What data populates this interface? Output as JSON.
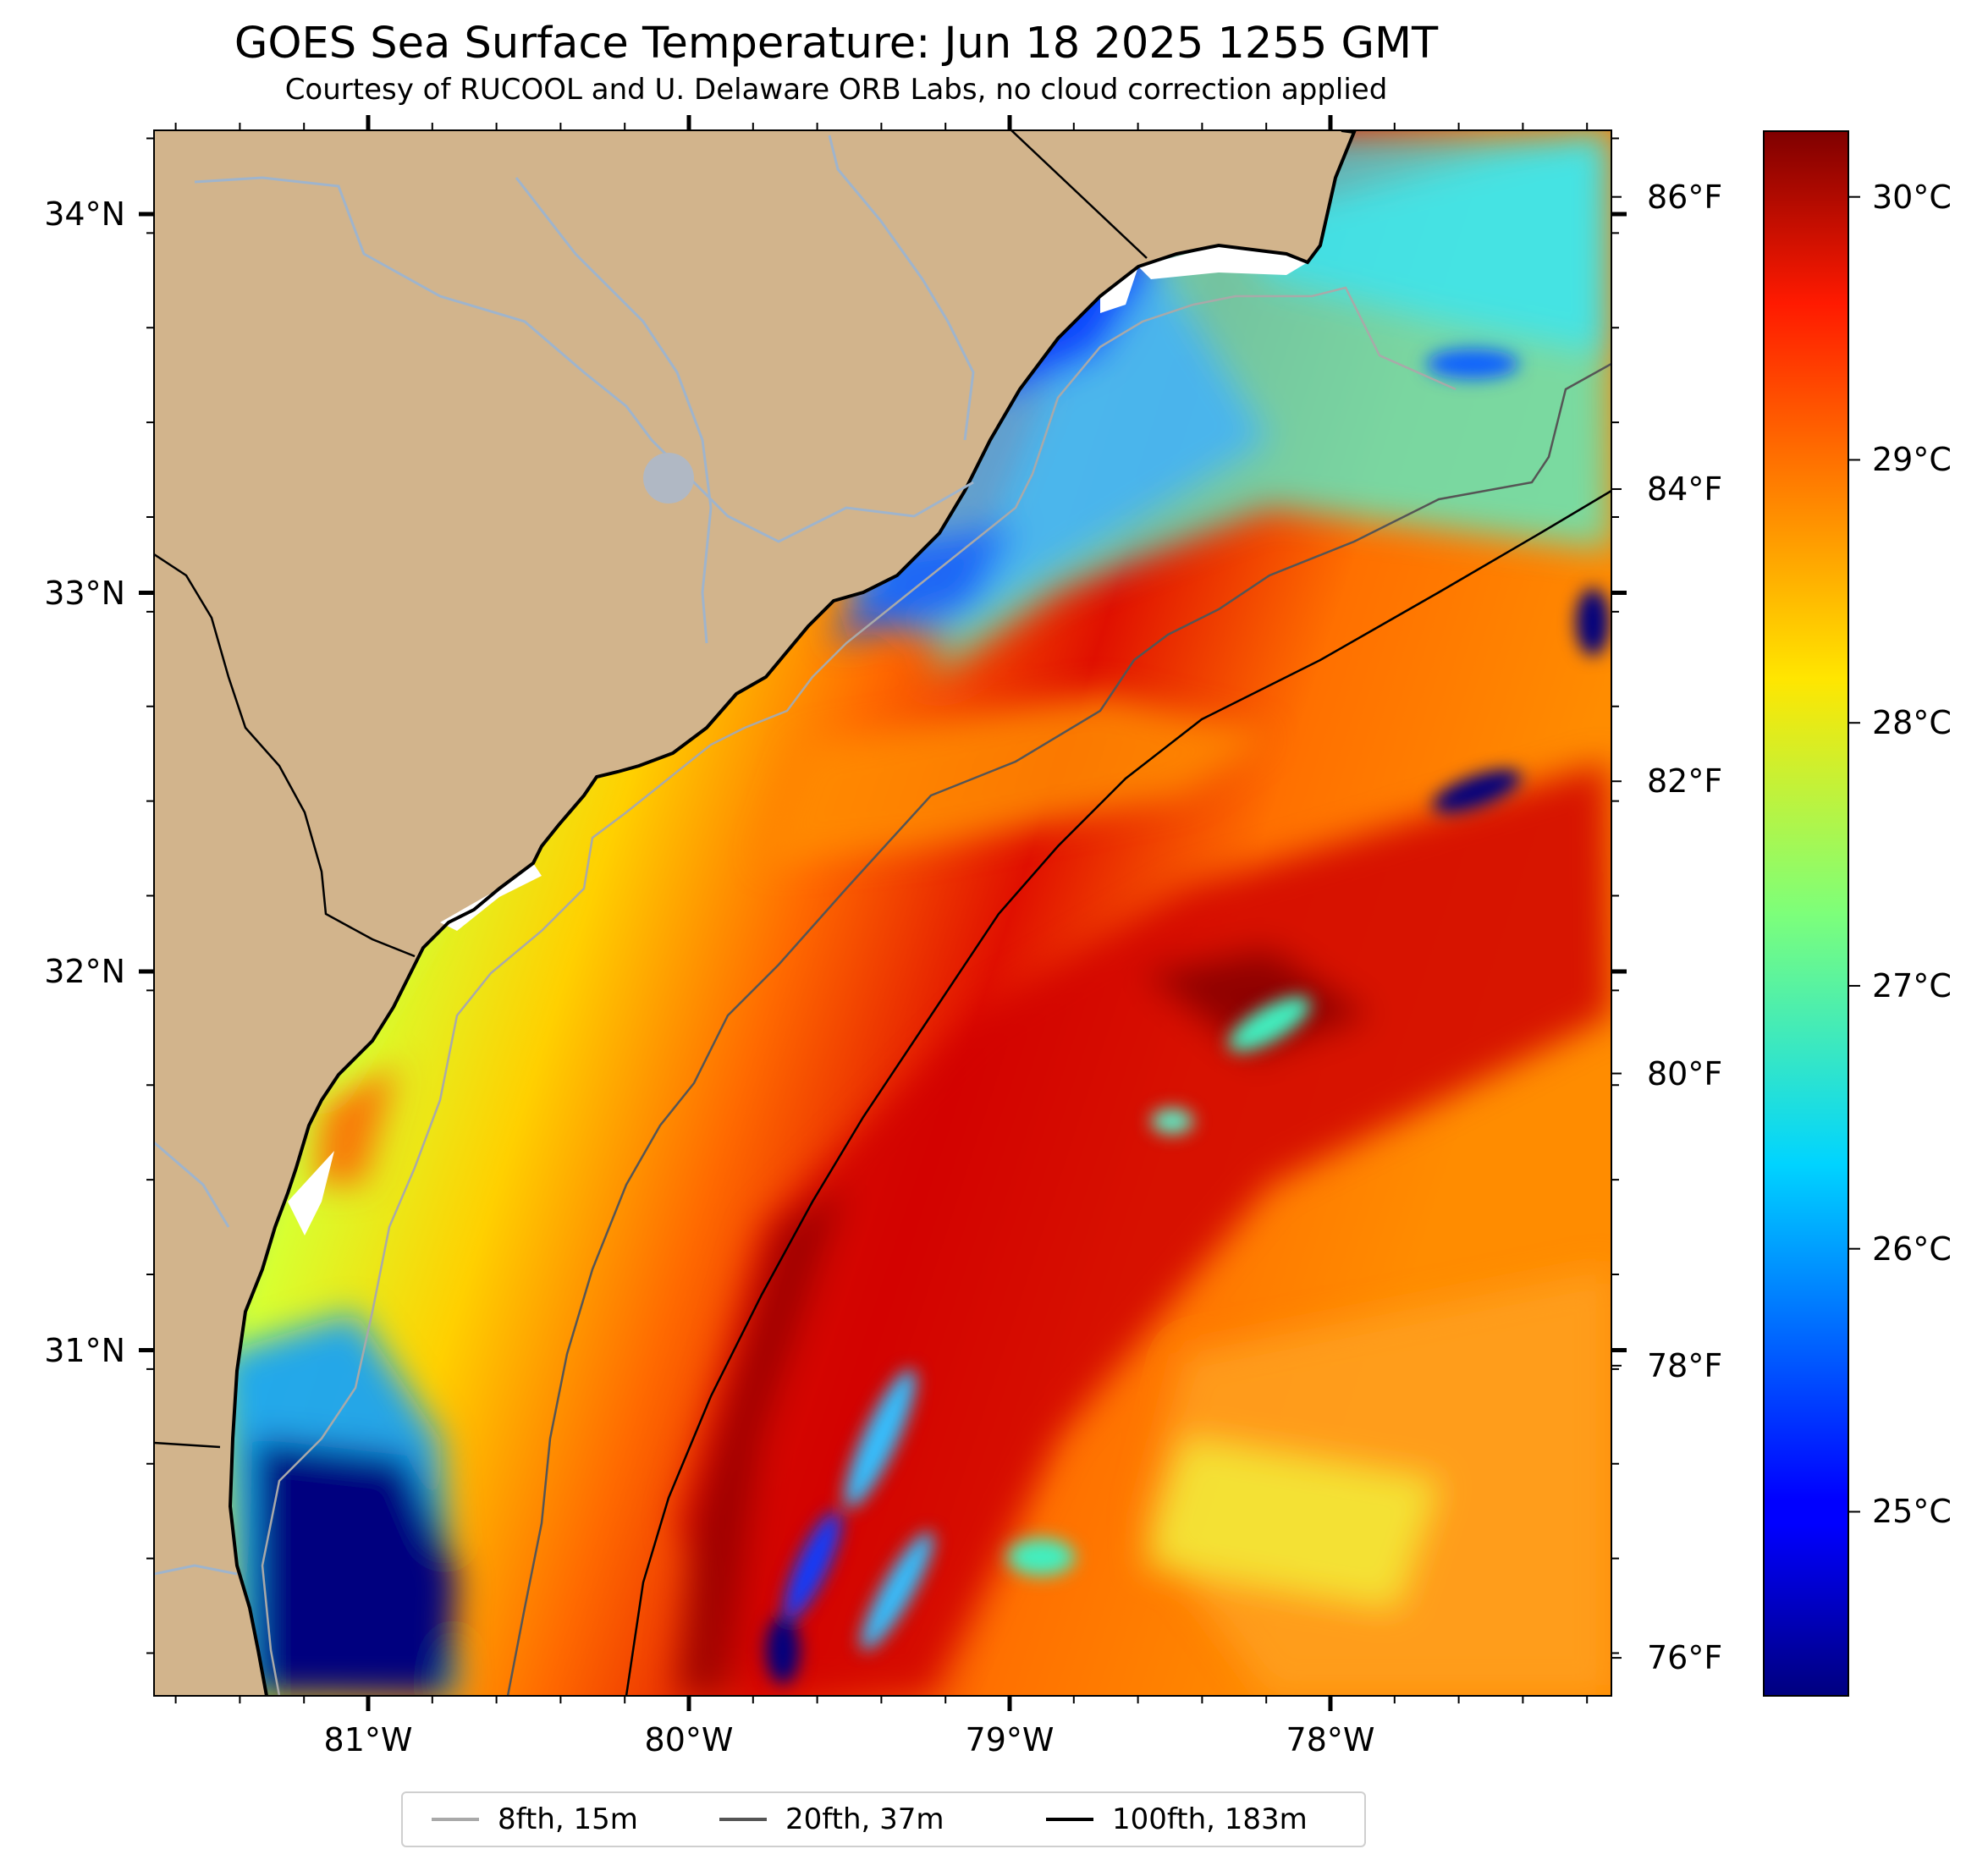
{
  "title": "GOES Sea Surface Temperature: Jun 18 2025 1255 GMT",
  "subtitle": "Courtesy of RUCOOL and U. Delaware ORB Labs, no cloud correction applied",
  "axes": {
    "lat_ticks": [
      {
        "value": 34,
        "label": "34°N"
      },
      {
        "value": 33,
        "label": "33°N"
      },
      {
        "value": 32,
        "label": "32°N"
      },
      {
        "value": 31,
        "label": "31°N"
      }
    ],
    "lon_ticks": [
      {
        "value": -81,
        "label": "81°W"
      },
      {
        "value": -80,
        "label": "80°W"
      },
      {
        "value": -79,
        "label": "79°W"
      },
      {
        "value": -78,
        "label": "78°W"
      }
    ],
    "lat_range": [
      30.2,
      34.2
    ],
    "lon_range": [
      -81.65,
      -77.1
    ]
  },
  "fahrenheit_axis": [
    {
      "value": 86,
      "label": "86°F"
    },
    {
      "value": 84,
      "label": "84°F"
    },
    {
      "value": 82,
      "label": "82°F"
    },
    {
      "value": 80,
      "label": "80°F"
    },
    {
      "value": 78,
      "label": "78°F"
    },
    {
      "value": 76,
      "label": "76°F"
    }
  ],
  "colorbar": {
    "colormap": "jet",
    "range_c": [
      24.3,
      30.25
    ],
    "ticks": [
      {
        "value": 30,
        "label": "30°C"
      },
      {
        "value": 29,
        "label": "29°C"
      },
      {
        "value": 28,
        "label": "28°C"
      },
      {
        "value": 27,
        "label": "27°C"
      },
      {
        "value": 26,
        "label": "26°C"
      },
      {
        "value": 25,
        "label": "25°C"
      }
    ]
  },
  "legend": [
    {
      "label": "8fth, 15m",
      "color": "#a9a9a9"
    },
    {
      "label": "20fth, 37m",
      "color": "#555555"
    },
    {
      "label": "100fth, 183m",
      "color": "#000000"
    }
  ],
  "colors": {
    "land": "#d2b48c",
    "rivers": "#9fb4cc",
    "coastline": "#000000"
  }
}
